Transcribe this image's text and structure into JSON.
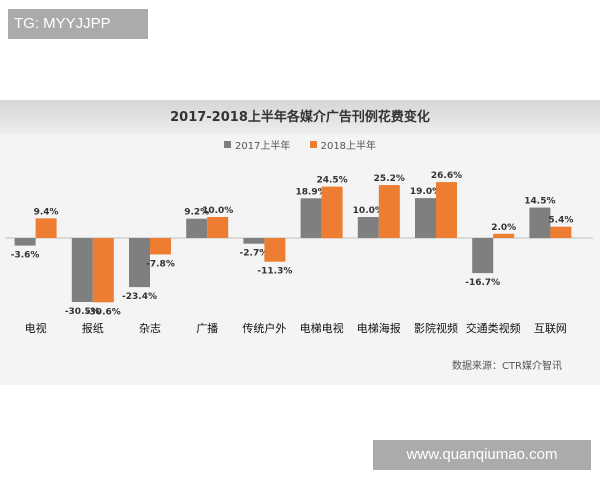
{
  "tag_text": "TG: MYYJJPP",
  "url_text": "www.quanqiumao.com",
  "source_text": "数据来源：CTR媒介智讯",
  "colors": {
    "series_2017": "#7f7f7f",
    "series_2018": "#ed7d31",
    "title_band": "#dcdcdc"
  },
  "chart_data": {
    "type": "bar",
    "title": "2017-2018上半年各媒介广告刊例花费变化",
    "categories": [
      "电视",
      "报纸",
      "杂志",
      "广播",
      "传统户外",
      "电梯电视",
      "电梯海报",
      "影院视频",
      "交通类视频",
      "互联网"
    ],
    "series": [
      {
        "name": "2017上半年",
        "values": [
          -3.6,
          -30.5,
          -23.4,
          9.2,
          -2.7,
          18.9,
          10.0,
          19.0,
          -16.7,
          14.5
        ],
        "labels": [
          "-3.6%",
          "-30.5%",
          "-23.4%",
          "9.2%",
          "-2.7%",
          "18.9%",
          "10.0%",
          "19.0%",
          "-16.7%",
          "14.5%"
        ]
      },
      {
        "name": "2018上半年",
        "values": [
          9.4,
          -30.6,
          -7.8,
          10.0,
          -11.3,
          24.5,
          25.2,
          26.6,
          2.0,
          5.4
        ],
        "labels": [
          "9.4%",
          "-30.6%",
          "-7.8%",
          "10.0%",
          "-11.3%",
          "24.5%",
          "25.2%",
          "26.6%",
          "2.0%",
          "5.4%"
        ]
      }
    ],
    "legend_position": "top",
    "grid": false
  }
}
